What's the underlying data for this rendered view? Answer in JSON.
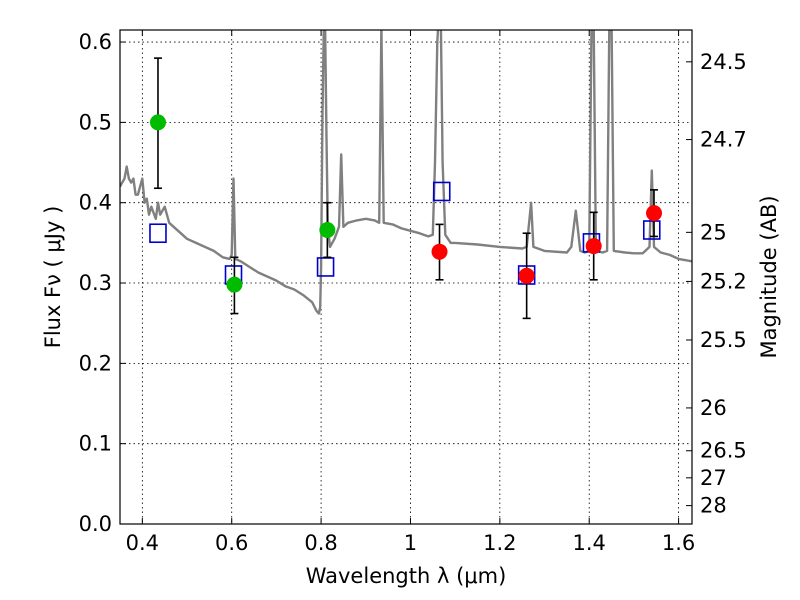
{
  "chart_data": {
    "type": "scatter",
    "title": "",
    "xlabel": "Wavelength  λ (μm)",
    "ylabel": "Flux  Fν  ( μJy )",
    "ylabel_right": "Magnitude (AB)",
    "xlim": [
      0.35,
      1.63
    ],
    "ylim": [
      0.0,
      0.615
    ],
    "grid": true,
    "x_ticks": [
      0.4,
      0.6,
      0.8,
      1.0,
      1.2,
      1.4,
      1.6
    ],
    "x_tick_labels": [
      "0.4",
      "0.6",
      "0.8",
      "1",
      "1.2",
      "1.4",
      "1.6"
    ],
    "y_ticks": [
      0.0,
      0.1,
      0.2,
      0.3,
      0.4,
      0.5,
      0.6
    ],
    "y_tick_labels": [
      "0.0",
      "0.1",
      "0.2",
      "0.3",
      "0.4",
      "0.5",
      "0.6"
    ],
    "right_ticks": [
      {
        "flux": 0.5754,
        "label": "24.5"
      },
      {
        "flux": 0.4786,
        "label": "24.7"
      },
      {
        "flux": 0.3631,
        "label": "25"
      },
      {
        "flux": 0.302,
        "label": "25.2"
      },
      {
        "flux": 0.2291,
        "label": "25.5"
      },
      {
        "flux": 0.1445,
        "label": "26"
      },
      {
        "flux": 0.0912,
        "label": "26.5"
      },
      {
        "flux": 0.0575,
        "label": "27"
      },
      {
        "flux": 0.0229,
        "label": "28"
      }
    ],
    "series": [
      {
        "kind": "spectrum",
        "color": "#808080",
        "points": [
          [
            0.35,
            0.42
          ],
          [
            0.355,
            0.425
          ],
          [
            0.36,
            0.43
          ],
          [
            0.365,
            0.445
          ],
          [
            0.37,
            0.43
          ],
          [
            0.375,
            0.425
          ],
          [
            0.38,
            0.43
          ],
          [
            0.385,
            0.41
          ],
          [
            0.39,
            0.41
          ],
          [
            0.395,
            0.42
          ],
          [
            0.4,
            0.43
          ],
          [
            0.405,
            0.4
          ],
          [
            0.41,
            0.405
          ],
          [
            0.415,
            0.385
          ],
          [
            0.42,
            0.395
          ],
          [
            0.43,
            0.38
          ],
          [
            0.435,
            0.4
          ],
          [
            0.44,
            0.385
          ],
          [
            0.45,
            0.395
          ],
          [
            0.46,
            0.375
          ],
          [
            0.47,
            0.37
          ],
          [
            0.48,
            0.365
          ],
          [
            0.5,
            0.355
          ],
          [
            0.52,
            0.35
          ],
          [
            0.54,
            0.345
          ],
          [
            0.56,
            0.34
          ],
          [
            0.58,
            0.332
          ],
          [
            0.595,
            0.33
          ],
          [
            0.6,
            0.335
          ],
          [
            0.604,
            0.43
          ],
          [
            0.608,
            0.33
          ],
          [
            0.62,
            0.327
          ],
          [
            0.64,
            0.32
          ],
          [
            0.66,
            0.313
          ],
          [
            0.68,
            0.308
          ],
          [
            0.7,
            0.303
          ],
          [
            0.72,
            0.296
          ],
          [
            0.74,
            0.292
          ],
          [
            0.76,
            0.285
          ],
          [
            0.78,
            0.276
          ],
          [
            0.79,
            0.265
          ],
          [
            0.795,
            0.262
          ],
          [
            0.798,
            0.27
          ],
          [
            0.8,
            0.32
          ],
          [
            0.803,
            0.5
          ],
          [
            0.806,
            0.62
          ],
          [
            0.809,
            0.62
          ],
          [
            0.812,
            0.48
          ],
          [
            0.815,
            0.37
          ],
          [
            0.82,
            0.345
          ],
          [
            0.83,
            0.355
          ],
          [
            0.84,
            0.37
          ],
          [
            0.845,
            0.46
          ],
          [
            0.85,
            0.37
          ],
          [
            0.86,
            0.375
          ],
          [
            0.88,
            0.378
          ],
          [
            0.9,
            0.38
          ],
          [
            0.92,
            0.378
          ],
          [
            0.93,
            0.375
          ],
          [
            0.935,
            0.62
          ],
          [
            0.94,
            0.375
          ],
          [
            0.96,
            0.373
          ],
          [
            0.98,
            0.368
          ],
          [
            1.0,
            0.365
          ],
          [
            1.02,
            0.362
          ],
          [
            1.04,
            0.358
          ],
          [
            1.05,
            0.36
          ],
          [
            1.055,
            0.45
          ],
          [
            1.06,
            0.6
          ],
          [
            1.062,
            0.62
          ],
          [
            1.068,
            0.62
          ],
          [
            1.072,
            0.45
          ],
          [
            1.078,
            0.36
          ],
          [
            1.09,
            0.35
          ],
          [
            1.1,
            0.35
          ],
          [
            1.15,
            0.348
          ],
          [
            1.2,
            0.345
          ],
          [
            1.25,
            0.343
          ],
          [
            1.26,
            0.345
          ],
          [
            1.27,
            0.4
          ],
          [
            1.275,
            0.345
          ],
          [
            1.3,
            0.34
          ],
          [
            1.35,
            0.338
          ],
          [
            1.36,
            0.345
          ],
          [
            1.37,
            0.39
          ],
          [
            1.38,
            0.34
          ],
          [
            1.39,
            0.338
          ],
          [
            1.4,
            0.34
          ],
          [
            1.405,
            0.62
          ],
          [
            1.41,
            0.62
          ],
          [
            1.415,
            0.34
          ],
          [
            1.43,
            0.338
          ],
          [
            1.44,
            0.34
          ],
          [
            1.445,
            0.62
          ],
          [
            1.45,
            0.62
          ],
          [
            1.455,
            0.34
          ],
          [
            1.48,
            0.338
          ],
          [
            1.5,
            0.337
          ],
          [
            1.52,
            0.337
          ],
          [
            1.535,
            0.345
          ],
          [
            1.54,
            0.44
          ],
          [
            1.545,
            0.345
          ],
          [
            1.56,
            0.338
          ],
          [
            1.58,
            0.335
          ],
          [
            1.6,
            0.33
          ],
          [
            1.63,
            0.327
          ]
        ]
      },
      {
        "kind": "model_boxes",
        "marker": "open-square",
        "color": "#0000cc",
        "points": [
          [
            0.435,
            0.362
          ],
          [
            0.604,
            0.31
          ],
          [
            0.81,
            0.32
          ],
          [
            1.07,
            0.414
          ],
          [
            1.26,
            0.31
          ],
          [
            1.405,
            0.35
          ],
          [
            1.54,
            0.366
          ]
        ]
      },
      {
        "kind": "observed",
        "marker": "circle",
        "color": "#00bb00",
        "points": [
          {
            "x": 0.435,
            "y": 0.5,
            "err_low": 0.418,
            "err_high": 0.58
          },
          {
            "x": 0.606,
            "y": 0.298,
            "err_low": 0.262,
            "err_high": 0.332
          },
          {
            "x": 0.814,
            "y": 0.366,
            "err_low": 0.332,
            "err_high": 0.4
          }
        ]
      },
      {
        "kind": "observed",
        "marker": "circle",
        "color": "#ff0000",
        "points": [
          {
            "x": 1.065,
            "y": 0.339,
            "err_low": 0.304,
            "err_high": 0.373
          },
          {
            "x": 1.26,
            "y": 0.309,
            "err_low": 0.256,
            "err_high": 0.362
          },
          {
            "x": 1.41,
            "y": 0.346,
            "err_low": 0.304,
            "err_high": 0.388
          },
          {
            "x": 1.545,
            "y": 0.387,
            "err_low": 0.358,
            "err_high": 0.416
          }
        ]
      }
    ]
  }
}
